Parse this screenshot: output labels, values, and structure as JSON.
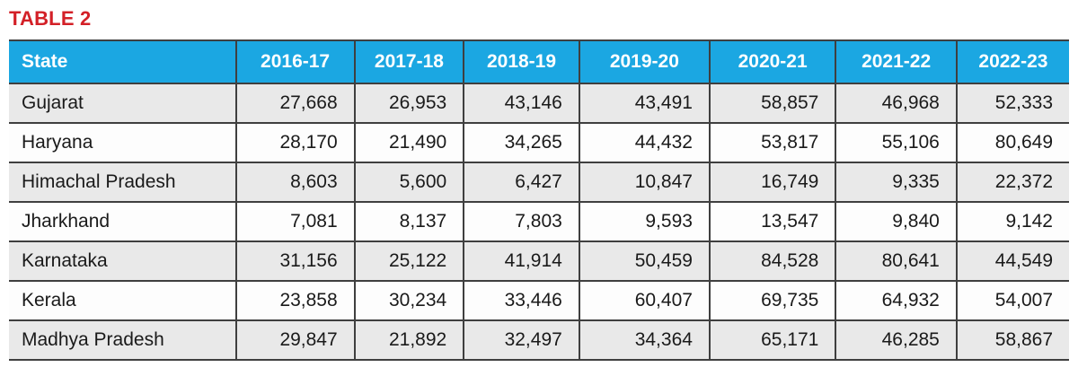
{
  "title": "TABLE 2",
  "colors": {
    "title_red": "#d32027",
    "header_blue": "#1ba7e2",
    "header_text": "#ffffff",
    "row_alt_gray": "#e9e9e9",
    "row_white": "#fdfdfd",
    "border_dark": "#3f3f3f"
  },
  "table": {
    "columns": [
      "State",
      "2016-17",
      "2017-18",
      "2018-19",
      "2019-20",
      "2020-21",
      "2021-22",
      "2022-23"
    ],
    "rows": [
      {
        "state": "Gujarat",
        "values": [
          "27,668",
          "26,953",
          "43,146",
          "43,491",
          "58,857",
          "46,968",
          "52,333"
        ]
      },
      {
        "state": "Haryana",
        "values": [
          "28,170",
          "21,490",
          "34,265",
          "44,432",
          "53,817",
          "55,106",
          "80,649"
        ]
      },
      {
        "state": "Himachal Pradesh",
        "values": [
          "8,603",
          "5,600",
          "6,427",
          "10,847",
          "16,749",
          "9,335",
          "22,372"
        ]
      },
      {
        "state": "Jharkhand",
        "values": [
          "7,081",
          "8,137",
          "7,803",
          "9,593",
          "13,547",
          "9,840",
          "9,142"
        ]
      },
      {
        "state": "Karnataka",
        "values": [
          "31,156",
          "25,122",
          "41,914",
          "50,459",
          "84,528",
          "80,641",
          "44,549"
        ]
      },
      {
        "state": "Kerala",
        "values": [
          "23,858",
          "30,234",
          "33,446",
          "60,407",
          "69,735",
          "64,932",
          "54,007"
        ]
      },
      {
        "state": "Madhya Pradesh",
        "values": [
          "29,847",
          "21,892",
          "32,497",
          "34,364",
          "65,171",
          "46,285",
          "58,867"
        ]
      }
    ]
  },
  "chart_data": {
    "type": "table",
    "title": "TABLE 2",
    "categories": [
      "2016-17",
      "2017-18",
      "2018-19",
      "2019-20",
      "2020-21",
      "2021-22",
      "2022-23"
    ],
    "series": [
      {
        "name": "Gujarat",
        "values": [
          27668,
          26953,
          43146,
          43491,
          58857,
          46968,
          52333
        ]
      },
      {
        "name": "Haryana",
        "values": [
          28170,
          21490,
          34265,
          44432,
          53817,
          55106,
          80649
        ]
      },
      {
        "name": "Himachal Pradesh",
        "values": [
          8603,
          5600,
          6427,
          10847,
          16749,
          9335,
          22372
        ]
      },
      {
        "name": "Jharkhand",
        "values": [
          7081,
          8137,
          7803,
          9593,
          13547,
          9840,
          9142
        ]
      },
      {
        "name": "Karnataka",
        "values": [
          31156,
          25122,
          41914,
          50459,
          84528,
          80641,
          44549
        ]
      },
      {
        "name": "Kerala",
        "values": [
          23858,
          30234,
          33446,
          60407,
          69735,
          64932,
          54007
        ]
      },
      {
        "name": "Madhya Pradesh",
        "values": [
          29847,
          21892,
          32497,
          34364,
          65171,
          46285,
          58867
        ]
      }
    ]
  }
}
